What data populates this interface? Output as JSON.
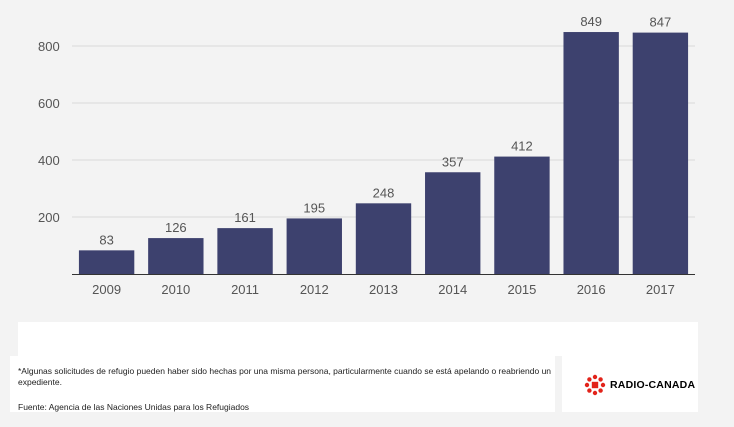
{
  "chart_data": {
    "type": "bar",
    "categories": [
      "2009",
      "2010",
      "2011",
      "2012",
      "2013",
      "2014",
      "2015",
      "2016",
      "2017"
    ],
    "values": [
      83,
      126,
      161,
      195,
      248,
      357,
      412,
      849,
      847
    ],
    "ylim": [
      0,
      900
    ],
    "yticks": [
      200,
      400,
      600,
      800
    ],
    "grid": true,
    "title": "",
    "xlabel": "",
    "ylabel": "",
    "bar_color": "#3d416e",
    "grid_color": "#d9d9d9"
  },
  "footnote": "*Algunas solicitudes de refugio pueden haber sido hechas por una misma persona, particularmente cuando se está apelando o reabriendo un expediente.",
  "source": "Fuente: Agencia de las Naciones Unidas para los Refugiados",
  "logo": {
    "text": "RADIO-CANADA",
    "color": "#e2231a"
  }
}
